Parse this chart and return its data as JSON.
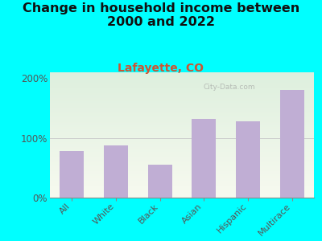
{
  "title": "Change in household income between\n2000 and 2022",
  "subtitle": "Lafayette, CO",
  "categories": [
    "All",
    "White",
    "Black",
    "Asian",
    "Hispanic",
    "Multirace"
  ],
  "values": [
    78,
    88,
    55,
    132,
    128,
    180
  ],
  "bar_color": "#c0aed4",
  "background_outer": "#00FFFF",
  "background_inner_top": "#ddeedd",
  "background_inner_bottom": "#f8f8ee",
  "title_fontsize": 11.5,
  "subtitle_fontsize": 10,
  "subtitle_color": "#cc5533",
  "tick_label_color": "#555555",
  "axis_color": "#888888",
  "ylim": [
    0,
    210
  ],
  "yticks": [
    0,
    100,
    200
  ],
  "ytick_labels": [
    "0%",
    "100%",
    "200%"
  ],
  "watermark": "City-Data.com"
}
